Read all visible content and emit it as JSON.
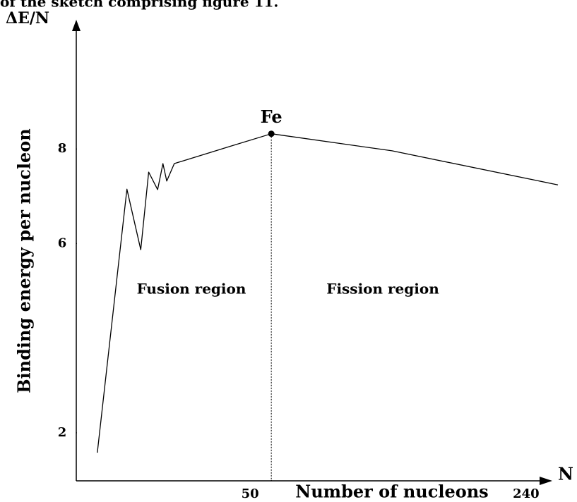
{
  "chart_data": {
    "type": "line",
    "caption": "of the sketch comprising figure 11.",
    "xlabel": "Number of nucleons",
    "ylabel": "Binding energy per nucleon",
    "x_axis_name": "N",
    "y_axis_name": "ΔE/N",
    "annotations": [
      "Fe",
      "Fusion region",
      "Fission region"
    ],
    "x": [
      18.6,
      22.0,
      23.8,
      24.9,
      26.2,
      27.0,
      27.6,
      28.8,
      39.4,
      50,
      99.3,
      255
    ],
    "values": [
      1.58,
      7.15,
      5.87,
      7.51,
      7.14,
      7.69,
      7.32,
      7.69,
      8.05,
      8.32,
      7.96,
      7.24
    ],
    "color": "#000000",
    "xscale": "log",
    "xlim": [
      16.5,
      255
    ],
    "xticks": [
      50,
      240
    ],
    "ylim": [
      1,
      10.7
    ],
    "yticks": [
      2,
      6,
      8
    ],
    "grid": false
  }
}
